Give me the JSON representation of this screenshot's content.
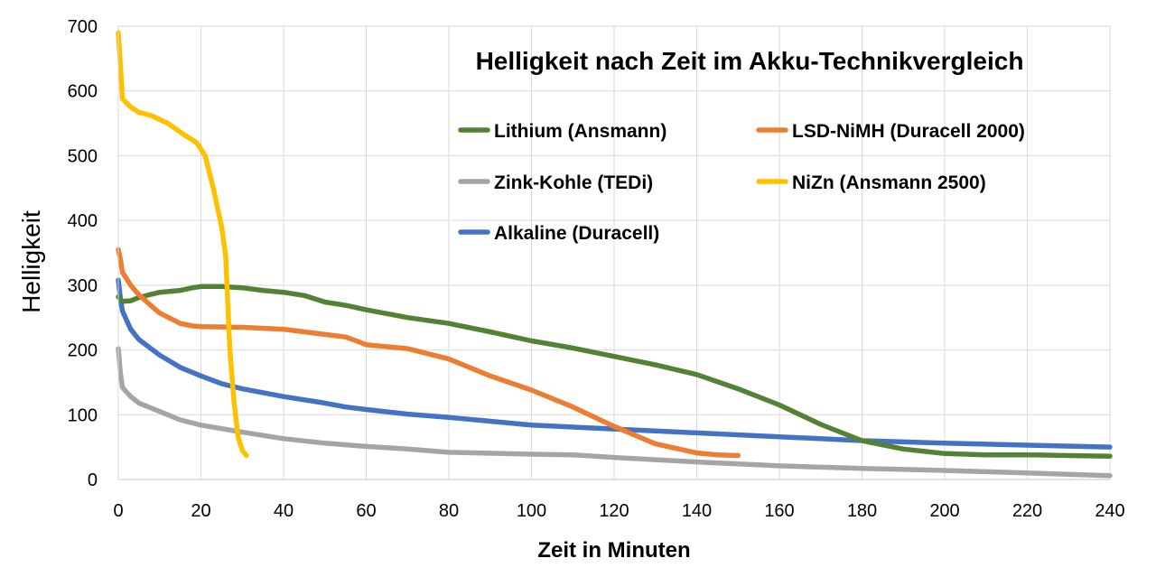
{
  "chart_data": {
    "type": "line",
    "title": "Helligkeit nach Zeit im Akku-Technikvergleich",
    "xlabel": "Zeit in Minuten",
    "ylabel": "Helligkeit",
    "xlim": [
      0,
      240
    ],
    "ylim": [
      0,
      700
    ],
    "xticks": [
      "0",
      "20",
      "40",
      "60",
      "80",
      "100",
      "120",
      "140",
      "160",
      "180",
      "200",
      "220",
      "240"
    ],
    "yticks": [
      "0",
      "100",
      "200",
      "300",
      "400",
      "500",
      "600",
      "700"
    ],
    "grid": true,
    "legend_position": "top-right",
    "series": [
      {
        "name": "Lithium (Ansmann)",
        "color": "#548235",
        "points": [
          [
            0,
            282
          ],
          [
            1,
            275
          ],
          [
            3,
            276
          ],
          [
            5,
            281
          ],
          [
            8,
            286
          ],
          [
            10,
            289
          ],
          [
            15,
            292
          ],
          [
            18,
            296
          ],
          [
            20,
            298
          ],
          [
            25,
            298
          ],
          [
            30,
            296
          ],
          [
            35,
            292
          ],
          [
            40,
            289
          ],
          [
            45,
            284
          ],
          [
            50,
            274
          ],
          [
            55,
            269
          ],
          [
            60,
            262
          ],
          [
            70,
            250
          ],
          [
            80,
            241
          ],
          [
            90,
            228
          ],
          [
            100,
            214
          ],
          [
            110,
            203
          ],
          [
            120,
            190
          ],
          [
            130,
            177
          ],
          [
            140,
            162
          ],
          [
            150,
            140
          ],
          [
            160,
            115
          ],
          [
            170,
            85
          ],
          [
            180,
            60
          ],
          [
            190,
            47
          ],
          [
            200,
            40
          ],
          [
            210,
            38
          ],
          [
            220,
            38
          ],
          [
            230,
            37
          ],
          [
            240,
            36
          ]
        ]
      },
      {
        "name": "LSD-NiMH (Duracell 2000)",
        "color": "#ED7D31",
        "points": [
          [
            0,
            355
          ],
          [
            0.5,
            340
          ],
          [
            1,
            320
          ],
          [
            3,
            300
          ],
          [
            5,
            285
          ],
          [
            8,
            268
          ],
          [
            10,
            257
          ],
          [
            15,
            241
          ],
          [
            18,
            237
          ],
          [
            20,
            236
          ],
          [
            30,
            235
          ],
          [
            40,
            232
          ],
          [
            45,
            228
          ],
          [
            50,
            224
          ],
          [
            55,
            220
          ],
          [
            58,
            213
          ],
          [
            60,
            208
          ],
          [
            70,
            202
          ],
          [
            80,
            186
          ],
          [
            90,
            160
          ],
          [
            100,
            138
          ],
          [
            110,
            112
          ],
          [
            120,
            82
          ],
          [
            130,
            55
          ],
          [
            140,
            41
          ],
          [
            145,
            38
          ],
          [
            150,
            37
          ]
        ]
      },
      {
        "name": "Zink-Kohle (TEDi)",
        "color": "#A5A5A5",
        "points": [
          [
            0,
            202
          ],
          [
            0.5,
            165
          ],
          [
            1,
            142
          ],
          [
            3,
            128
          ],
          [
            5,
            118
          ],
          [
            10,
            105
          ],
          [
            15,
            92
          ],
          [
            20,
            84
          ],
          [
            30,
            73
          ],
          [
            40,
            63
          ],
          [
            50,
            56
          ],
          [
            60,
            51
          ],
          [
            70,
            47
          ],
          [
            80,
            42
          ],
          [
            100,
            39
          ],
          [
            110,
            38
          ],
          [
            120,
            34
          ],
          [
            140,
            27
          ],
          [
            160,
            21
          ],
          [
            180,
            17
          ],
          [
            200,
            14
          ],
          [
            220,
            10
          ],
          [
            240,
            6
          ]
        ]
      },
      {
        "name": "NiZn (Ansmann 2500)",
        "color": "#FFC000",
        "points": [
          [
            0,
            690
          ],
          [
            0.5,
            640
          ],
          [
            1,
            588
          ],
          [
            3,
            575
          ],
          [
            5,
            567
          ],
          [
            8,
            562
          ],
          [
            12,
            550
          ],
          [
            16,
            532
          ],
          [
            19,
            520
          ],
          [
            21,
            500
          ],
          [
            23,
            450
          ],
          [
            25,
            390
          ],
          [
            26,
            345
          ],
          [
            27,
            200
          ],
          [
            28,
            120
          ],
          [
            29,
            65
          ],
          [
            30,
            45
          ],
          [
            31,
            37
          ]
        ]
      },
      {
        "name": "Alkaline (Duracell)",
        "color": "#4472C4",
        "points": [
          [
            0,
            308
          ],
          [
            0.5,
            280
          ],
          [
            1,
            260
          ],
          [
            3,
            232
          ],
          [
            5,
            216
          ],
          [
            10,
            192
          ],
          [
            15,
            173
          ],
          [
            20,
            160
          ],
          [
            25,
            148
          ],
          [
            30,
            140
          ],
          [
            40,
            128
          ],
          [
            50,
            118
          ],
          [
            55,
            112
          ],
          [
            60,
            108
          ],
          [
            70,
            101
          ],
          [
            80,
            96
          ],
          [
            90,
            90
          ],
          [
            100,
            84
          ],
          [
            120,
            78
          ],
          [
            140,
            72
          ],
          [
            160,
            66
          ],
          [
            180,
            60
          ],
          [
            200,
            56
          ],
          [
            220,
            53
          ],
          [
            240,
            50
          ]
        ]
      }
    ]
  }
}
